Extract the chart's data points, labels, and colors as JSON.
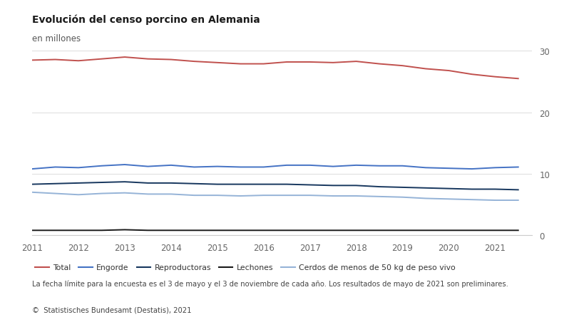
{
  "title": "Evolución del censo porcino en Alemania",
  "subtitle": "en millones",
  "footnote": "La fecha límite para la encuesta es el 3 de mayo y el 3 de noviembre de cada año. Los resultados de mayo de 2021 son preliminares.",
  "source_plain": "©  Statistisches Bundesamt (Destatis), 2021",
  "years": [
    2011,
    2011.5,
    2012,
    2012.5,
    2013,
    2013.5,
    2014,
    2014.5,
    2015,
    2015.5,
    2016,
    2016.5,
    2017,
    2017.5,
    2018,
    2018.5,
    2019,
    2019.5,
    2020,
    2020.5,
    2021,
    2021.5
  ],
  "total": [
    28.5,
    28.6,
    28.4,
    28.7,
    29.0,
    28.7,
    28.6,
    28.3,
    28.1,
    27.9,
    27.9,
    28.2,
    28.2,
    28.1,
    28.3,
    27.9,
    27.6,
    27.1,
    26.8,
    26.2,
    25.8,
    25.5
  ],
  "engorde": [
    10.8,
    11.1,
    11.0,
    11.3,
    11.5,
    11.2,
    11.4,
    11.1,
    11.2,
    11.1,
    11.1,
    11.4,
    11.4,
    11.2,
    11.4,
    11.3,
    11.3,
    11.0,
    10.9,
    10.8,
    11.0,
    11.1
  ],
  "reproductoras": [
    8.3,
    8.4,
    8.5,
    8.6,
    8.7,
    8.5,
    8.5,
    8.4,
    8.3,
    8.3,
    8.3,
    8.3,
    8.2,
    8.1,
    8.1,
    7.9,
    7.8,
    7.7,
    7.6,
    7.5,
    7.5,
    7.4
  ],
  "cerdos50": [
    7.0,
    6.8,
    6.6,
    6.8,
    6.9,
    6.7,
    6.7,
    6.5,
    6.5,
    6.4,
    6.5,
    6.5,
    6.5,
    6.4,
    6.4,
    6.3,
    6.2,
    6.0,
    5.9,
    5.8,
    5.7,
    5.7
  ],
  "lechones": [
    0.8,
    0.8,
    0.8,
    0.8,
    0.9,
    0.8,
    0.8,
    0.8,
    0.8,
    0.8,
    0.8,
    0.8,
    0.8,
    0.8,
    0.8,
    0.8,
    0.8,
    0.8,
    0.8,
    0.8,
    0.8,
    0.8
  ],
  "color_total": "#c0504d",
  "color_engorde": "#4472c4",
  "color_reproductoras": "#17375e",
  "color_lechones": "#1a1a1a",
  "color_cerdos50": "#95b3d7",
  "ylim": [
    0,
    32
  ],
  "yticks": [
    0,
    10,
    20,
    30
  ],
  "xticks": [
    2011,
    2012,
    2013,
    2014,
    2015,
    2016,
    2017,
    2018,
    2019,
    2020,
    2021
  ],
  "background_color": "#ffffff",
  "legend_labels": [
    "Total",
    "Engorde",
    "Reproductoras",
    "Lechones",
    "Cerdos de menos de 50 kg de peso vivo"
  ]
}
